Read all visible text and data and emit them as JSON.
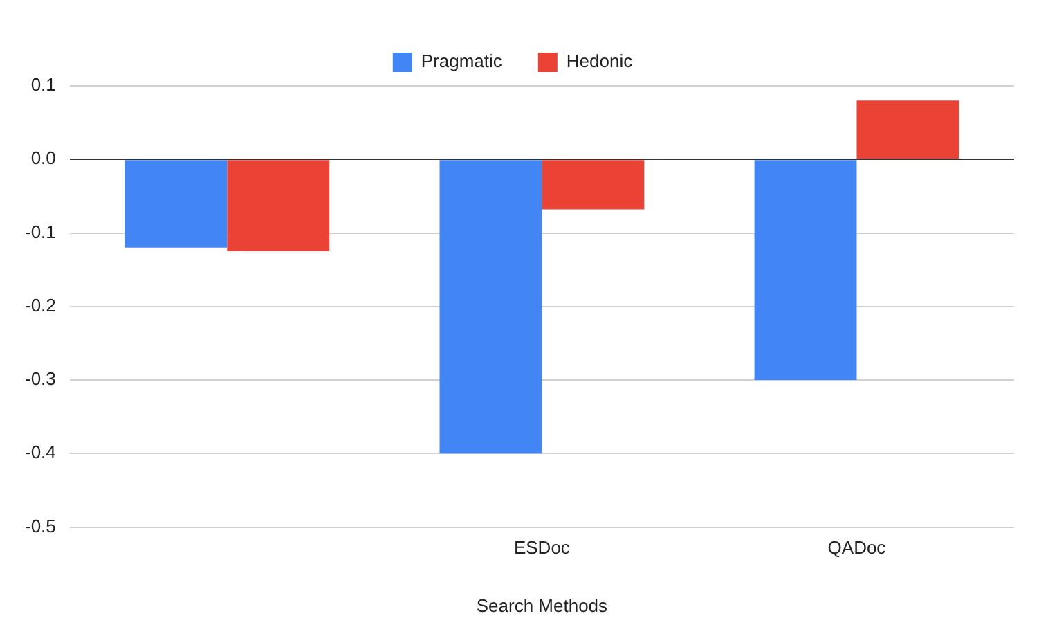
{
  "chart_data": {
    "type": "bar",
    "xlabel": "Search Methods",
    "categories": [
      null,
      "ESDoc",
      "QADoc"
    ],
    "series": [
      {
        "name": "Pragmatic",
        "color": "#4285f4",
        "values": [
          -0.12,
          -0.4,
          -0.3
        ]
      },
      {
        "name": "Hedonic",
        "color": "#ea4335",
        "values": [
          -0.125,
          -0.068,
          0.08
        ]
      }
    ],
    "ylim": [
      -0.5,
      0.1
    ],
    "yticks": [
      {
        "value": -0.5,
        "label": "-0.5"
      },
      {
        "value": -0.4,
        "label": "-0.4"
      },
      {
        "value": -0.3,
        "label": "-0.3"
      },
      {
        "value": -0.2,
        "label": "-0.2"
      },
      {
        "value": -0.1,
        "label": "-0.1"
      },
      {
        "value": 0,
        "label": "0.0"
      },
      {
        "value": 0.1,
        "label": "0.1"
      }
    ],
    "grid": "y",
    "legend": "top"
  }
}
